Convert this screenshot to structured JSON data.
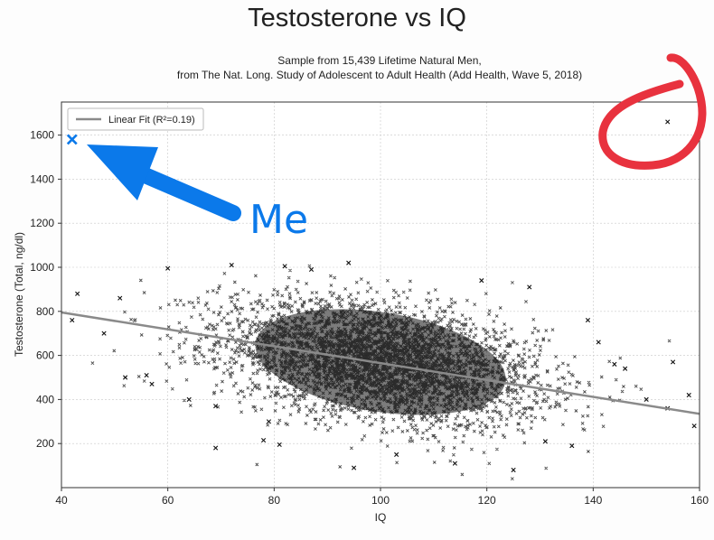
{
  "chart_data": {
    "type": "scatter",
    "title": "Testosterone vs IQ",
    "subtitle_lines": [
      "Sample from 15,439 Lifetime Natural Men,",
      "from The Nat. Long. Study of Adolescent to Adult Health (Add Health, Wave 5, 2018)"
    ],
    "xlabel": "IQ",
    "ylabel": "Testosterone (Total, ng/dl)",
    "xlim": [
      40,
      160
    ],
    "ylim": [
      0,
      1750
    ],
    "x_ticks": [
      40,
      60,
      80,
      100,
      120,
      140,
      160
    ],
    "y_ticks": [
      200,
      400,
      600,
      800,
      1000,
      1200,
      1400,
      1600
    ],
    "grid": true,
    "legend": {
      "placement": "top-left",
      "entries": [
        "Linear Fit (R²=0.19)"
      ]
    },
    "fit_line": {
      "x": [
        40,
        160
      ],
      "y": [
        795,
        335
      ]
    },
    "cloud": {
      "center_x": 100,
      "center_y": 570,
      "sd_x": 15,
      "sd_y": 130,
      "count": 15439
    },
    "outliers": [
      {
        "x": 43,
        "y": 880
      },
      {
        "x": 42,
        "y": 760
      },
      {
        "x": 48,
        "y": 700
      },
      {
        "x": 51,
        "y": 860
      },
      {
        "x": 52,
        "y": 500
      },
      {
        "x": 56,
        "y": 510
      },
      {
        "x": 57,
        "y": 470
      },
      {
        "x": 60,
        "y": 995
      },
      {
        "x": 64,
        "y": 400
      },
      {
        "x": 69,
        "y": 370
      },
      {
        "x": 69,
        "y": 180
      },
      {
        "x": 72,
        "y": 1010
      },
      {
        "x": 78,
        "y": 215
      },
      {
        "x": 79,
        "y": 300
      },
      {
        "x": 81,
        "y": 195
      },
      {
        "x": 82,
        "y": 1005
      },
      {
        "x": 87,
        "y": 990
      },
      {
        "x": 94,
        "y": 1020
      },
      {
        "x": 95,
        "y": 90
      },
      {
        "x": 103,
        "y": 150
      },
      {
        "x": 114,
        "y": 110
      },
      {
        "x": 119,
        "y": 940
      },
      {
        "x": 125,
        "y": 80
      },
      {
        "x": 128,
        "y": 910
      },
      {
        "x": 131,
        "y": 210
      },
      {
        "x": 136,
        "y": 190
      },
      {
        "x": 139,
        "y": 760
      },
      {
        "x": 141,
        "y": 660
      },
      {
        "x": 144,
        "y": 560
      },
      {
        "x": 146,
        "y": 540
      },
      {
        "x": 150,
        "y": 400
      },
      {
        "x": 154,
        "y": 360
      },
      {
        "x": 155,
        "y": 570
      },
      {
        "x": 158,
        "y": 420
      },
      {
        "x": 159,
        "y": 280
      },
      {
        "x": 154,
        "y": 1660
      }
    ],
    "highlighted_point": {
      "x": 42,
      "y": 1580
    }
  },
  "annotation": {
    "label": "Me",
    "arrow_color": "#0b79ea",
    "circle_color": "#e8323e"
  },
  "colors": {
    "points": "#111111",
    "fit_line": "#8a8a8a",
    "grid": "#c8c8c8",
    "axes": "#333333"
  }
}
